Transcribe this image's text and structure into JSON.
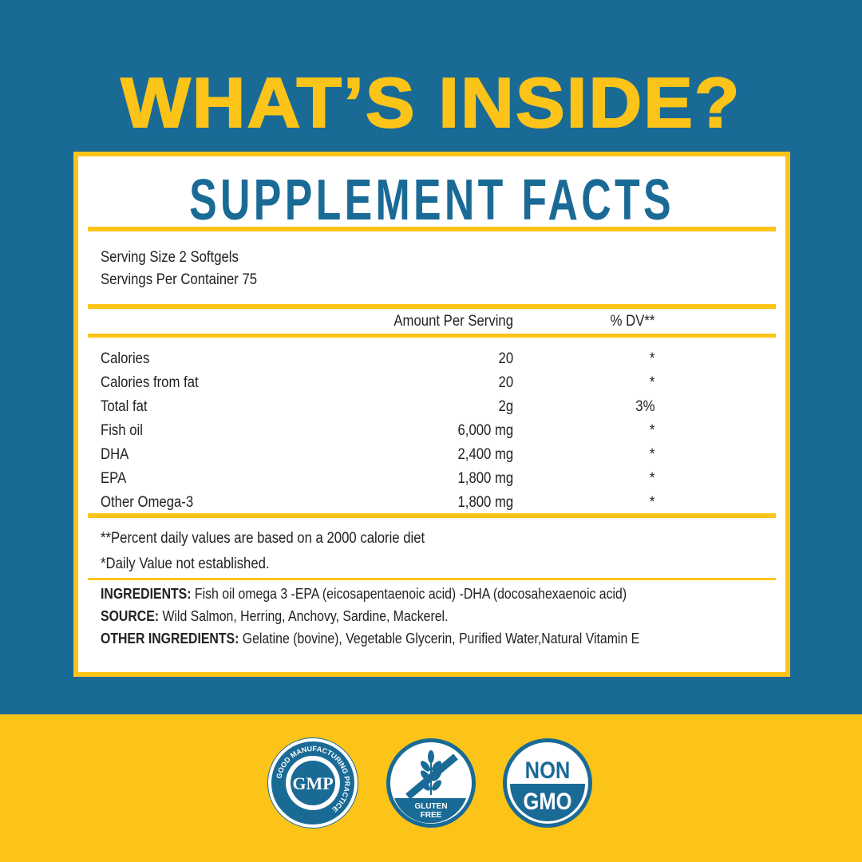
{
  "headline": "WHAT’S INSIDE?",
  "panel": {
    "title": "SUPPLEMENT FACTS",
    "serving_size": "Serving Size 2 Softgels",
    "servings_per_container": "Servings Per Container 75",
    "col_amount": "Amount Per Serving",
    "col_dv": "% DV**",
    "rows": [
      {
        "label": "Calories",
        "amount": "20",
        "dv": "*"
      },
      {
        "label": "Calories from fat",
        "amount": "20",
        "dv": "*"
      },
      {
        "label": "Total fat",
        "amount": "2g",
        "dv": "3%"
      },
      {
        "label": "Fish oil",
        "amount": "6,000 mg",
        "dv": "*"
      },
      {
        "label": "DHA",
        "amount": "2,400 mg",
        "dv": "*"
      },
      {
        "label": "EPA",
        "amount": "1,800 mg",
        "dv": "*"
      },
      {
        "label": "Other Omega-3",
        "amount": "1,800 mg",
        "dv": "*"
      }
    ],
    "footnote1": "**Percent daily values are based on a 2000 calorie diet",
    "footnote2": "*Daily Value not established.",
    "ingredients_label": "INGREDIENTS:",
    "ingredients": " Fish oil omega 3 -EPA (eicosapentaenoic acid) -DHA (docosahexaenoic acid)",
    "source_label": "SOURCE:",
    "source": " Wild Salmon, Herring, Anchovy, Sardine, Mackerel.",
    "other_label": "OTHER INGREDIENTS:",
    "other": " Gelatine (bovine), Vegetable Glycerin, Purified Water,Natural Vitamin E"
  },
  "badges": {
    "gmp": {
      "center": "GMP",
      "ring": "GOOD MANUFACTURING PRACTICE"
    },
    "gluten": {
      "line1": "GLUTEN",
      "line2": "FREE"
    },
    "nongmo": {
      "line1": "NON",
      "line2": "GMO"
    }
  },
  "colors": {
    "blue": "#1a6a96",
    "yellow": "#fcc419"
  }
}
